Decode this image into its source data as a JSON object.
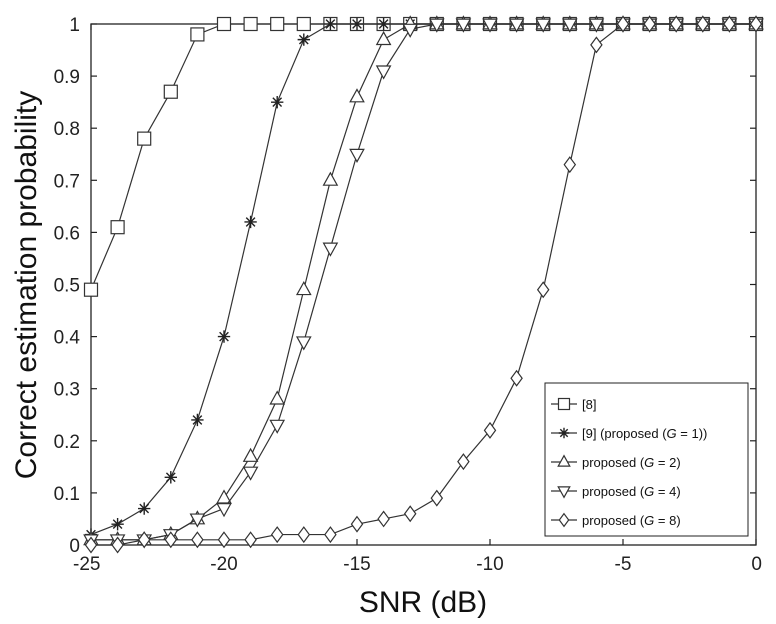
{
  "chart_data": {
    "type": "line",
    "title": "",
    "xlabel": "SNR (dB)",
    "ylabel": "Correct estimation probability",
    "xlim": [
      -25,
      0
    ],
    "ylim": [
      0,
      1
    ],
    "xticks": [
      -25,
      -20,
      -15,
      -10,
      -5,
      0
    ],
    "yticks": [
      0,
      0.1,
      0.2,
      0.3,
      0.4,
      0.5,
      0.6,
      0.7,
      0.8,
      0.9,
      1
    ],
    "grid": false,
    "legend_position": "bottom-right",
    "x": [
      -25,
      -24,
      -23,
      -22,
      -21,
      -20,
      -19,
      -18,
      -17,
      -16,
      -15,
      -14,
      -13,
      -12,
      -11,
      -10,
      -9,
      -8,
      -7,
      -6,
      -5,
      -4,
      -3,
      -2,
      -1,
      0
    ],
    "series": [
      {
        "name": "[8]",
        "marker": "square",
        "values": [
          0.49,
          0.61,
          0.78,
          0.87,
          0.98,
          1.0,
          1.0,
          1.0,
          1.0,
          1.0,
          1.0,
          1.0,
          1.0,
          1.0,
          1.0,
          1.0,
          1.0,
          1.0,
          1.0,
          1.0,
          1.0,
          1.0,
          1.0,
          1.0,
          1.0,
          1.0
        ]
      },
      {
        "name": "[9] (proposed (G = 1))",
        "marker": "star",
        "values": [
          0.02,
          0.04,
          0.07,
          0.13,
          0.24,
          0.4,
          0.62,
          0.85,
          0.97,
          1.0,
          1.0,
          1.0,
          1.0,
          1.0,
          1.0,
          1.0,
          1.0,
          1.0,
          1.0,
          1.0,
          1.0,
          1.0,
          1.0,
          1.0,
          1.0,
          1.0
        ]
      },
      {
        "name": "proposed (G = 2)",
        "marker": "triangle-up",
        "values": [
          0.01,
          0.01,
          0.01,
          0.02,
          0.05,
          0.09,
          0.17,
          0.28,
          0.49,
          0.7,
          0.86,
          0.97,
          1.0,
          1.0,
          1.0,
          1.0,
          1.0,
          1.0,
          1.0,
          1.0,
          1.0,
          1.0,
          1.0,
          1.0,
          1.0,
          1.0
        ]
      },
      {
        "name": "proposed (G = 4)",
        "marker": "triangle-down",
        "values": [
          0.01,
          0.01,
          0.01,
          0.02,
          0.05,
          0.07,
          0.14,
          0.23,
          0.39,
          0.57,
          0.75,
          0.91,
          0.99,
          1.0,
          1.0,
          1.0,
          1.0,
          1.0,
          1.0,
          1.0,
          1.0,
          1.0,
          1.0,
          1.0,
          1.0,
          1.0
        ]
      },
      {
        "name": "proposed (G = 8)",
        "marker": "diamond",
        "values": [
          0.0,
          0.0,
          0.01,
          0.01,
          0.01,
          0.01,
          0.01,
          0.02,
          0.02,
          0.02,
          0.04,
          0.05,
          0.06,
          0.09,
          0.16,
          0.22,
          0.32,
          0.49,
          0.73,
          0.96,
          1.0,
          1.0,
          1.0,
          1.0,
          1.0,
          1.0
        ]
      }
    ],
    "legend_entries": [
      {
        "prefix": "[8]",
        "italic": "",
        "suffix": ""
      },
      {
        "prefix": "[9] (proposed (",
        "italic": "G",
        "suffix": " = 1))"
      },
      {
        "prefix": "proposed (",
        "italic": "G",
        "suffix": " = 2)"
      },
      {
        "prefix": "proposed (",
        "italic": "G",
        "suffix": " = 4)"
      },
      {
        "prefix": "proposed (",
        "italic": "G",
        "suffix": " = 8)"
      }
    ],
    "colors": {
      "line": "#333333",
      "marker_fill": "#ffffff",
      "axis": "#222222"
    }
  }
}
